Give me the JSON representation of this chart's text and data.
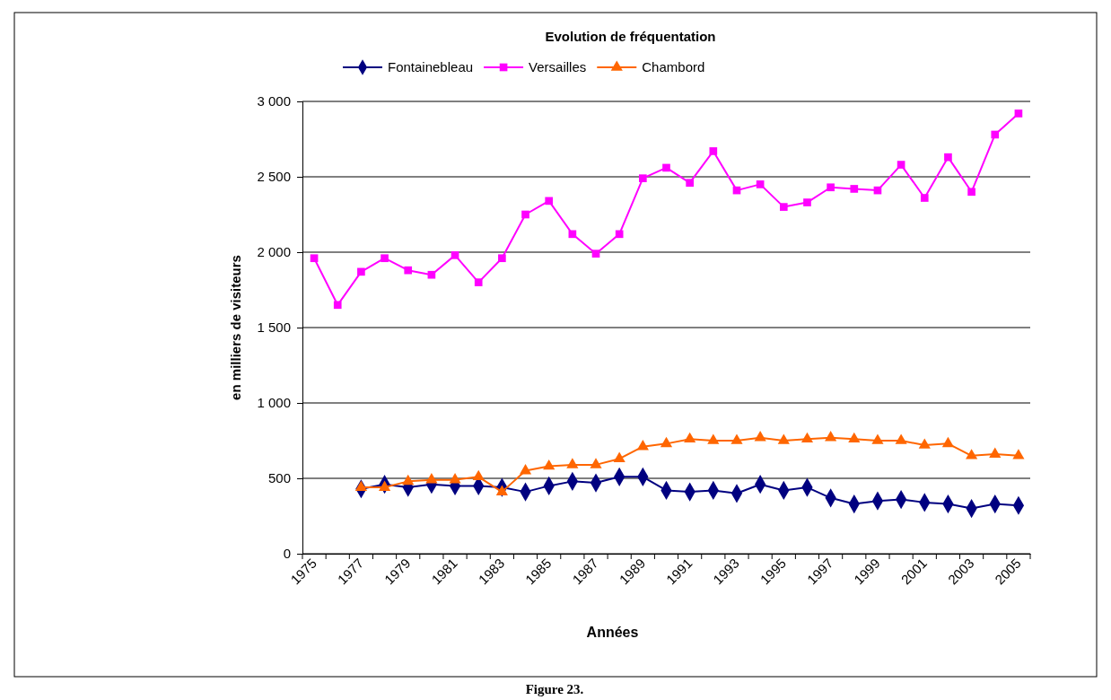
{
  "chart_data": {
    "type": "line",
    "title": "Evolution de fréquentation",
    "xlabel": "Années",
    "ylabel": "en milliers de visiteurs",
    "annotations": [
      "Figure 23."
    ],
    "categories": [
      "1975",
      null,
      "1977",
      null,
      "1979",
      null,
      "1981",
      null,
      "1983",
      null,
      "1985",
      null,
      "1987",
      null,
      "1989",
      null,
      "1991",
      null,
      "1993",
      null,
      "1995",
      null,
      "1997",
      null,
      "1999",
      null,
      "2001",
      null,
      "2003",
      null,
      "2005"
    ],
    "series": [
      {
        "name": "Fontainebleau",
        "color": "#000080",
        "marker": "diamond",
        "values": [
          null,
          null,
          430,
          460,
          440,
          460,
          450,
          450,
          440,
          410,
          450,
          480,
          470,
          510,
          510,
          420,
          410,
          420,
          400,
          460,
          420,
          440,
          370,
          330,
          350,
          360,
          340,
          330,
          300,
          330,
          320
        ]
      },
      {
        "name": "Versailles",
        "color": "#ff00ff",
        "marker": "square",
        "values": [
          1960,
          1650,
          1870,
          1960,
          1880,
          1850,
          1980,
          1800,
          1960,
          2250,
          2340,
          2120,
          1990,
          2120,
          2490,
          2560,
          2460,
          2670,
          2410,
          2450,
          2300,
          2330,
          2430,
          2420,
          2410,
          2580,
          2360,
          2630,
          2400,
          2780,
          2920
        ]
      },
      {
        "name": "Chambord",
        "color": "#ff6600",
        "marker": "triangle",
        "values": [
          null,
          null,
          440,
          440,
          480,
          490,
          490,
          510,
          410,
          550,
          580,
          590,
          590,
          630,
          710,
          730,
          760,
          750,
          750,
          770,
          750,
          760,
          770,
          760,
          750,
          750,
          720,
          730,
          650,
          660,
          650
        ]
      }
    ],
    "ylim": [
      0,
      3000
    ],
    "yticks": [
      0,
      500,
      {
        "value": 1000,
        "label": "1 000"
      },
      {
        "value": 1500,
        "label": "1 500"
      },
      {
        "value": 2000,
        "label": "2 000"
      },
      {
        "value": 2500,
        "label": "2 500"
      },
      {
        "value": 3000,
        "label": "3 000"
      }
    ],
    "grid": "y",
    "legend": "top",
    "line_style": "solid"
  }
}
